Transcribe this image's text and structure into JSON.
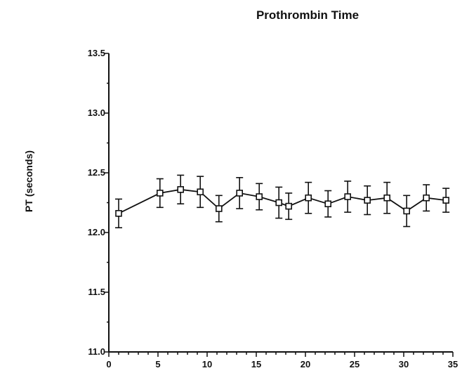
{
  "chart_data": {
    "type": "line",
    "title": "Prothrombin Time",
    "xlabel": "",
    "ylabel": "PT (seconds)",
    "xlim": [
      0,
      35
    ],
    "ylim": [
      11.0,
      13.5
    ],
    "x_ticks": [
      0,
      5,
      10,
      15,
      20,
      25,
      30,
      35
    ],
    "y_ticks": [
      11.0,
      11.5,
      12.0,
      12.5,
      13.0,
      13.5
    ],
    "y_tick_labels": [
      "11.0",
      "11.5",
      "12.0",
      "12.5",
      "13.0",
      "13.5"
    ],
    "grid": false,
    "legend": "none",
    "marker": "open-square",
    "series": [
      {
        "x": [
          1,
          5.2,
          7.3,
          9.3,
          11.2,
          13.3,
          15.3,
          17.3,
          18.3,
          20.3,
          22.3,
          24.3,
          26.3,
          28.3,
          30.3,
          32.3,
          34.3
        ],
        "y": [
          12.16,
          12.33,
          12.36,
          12.34,
          12.2,
          12.33,
          12.3,
          12.25,
          12.22,
          12.29,
          12.24,
          12.3,
          12.27,
          12.29,
          12.18,
          12.29,
          12.27
        ],
        "err": [
          0.12,
          0.12,
          0.12,
          0.13,
          0.11,
          0.13,
          0.11,
          0.13,
          0.11,
          0.13,
          0.11,
          0.13,
          0.12,
          0.13,
          0.13,
          0.11,
          0.1
        ]
      }
    ]
  }
}
